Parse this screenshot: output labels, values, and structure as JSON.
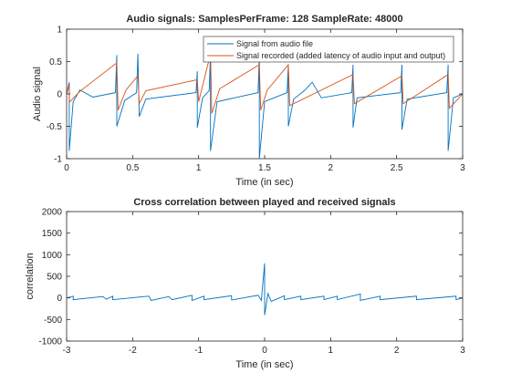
{
  "figure": {
    "background": "#ffffff"
  },
  "chart_data": [
    {
      "type": "line",
      "title": "Audio signals: SamplesPerFrame: 128 SampleRate: 48000",
      "xlabel": "Time (in sec)",
      "ylabel": "Audio signal",
      "xlim": [
        0,
        3
      ],
      "ylim": [
        -1,
        1
      ],
      "xticks": [
        0,
        0.5,
        1,
        1.5,
        2,
        2.5,
        3
      ],
      "xtick_labels": [
        "0",
        "0.5",
        "1",
        "1.5",
        "2",
        "2.5",
        "3"
      ],
      "yticks": [
        -1,
        -0.5,
        0,
        0.5,
        1
      ],
      "ytick_labels": [
        "-1",
        "-0.5",
        "0",
        "0.5",
        "1"
      ],
      "grid": false,
      "legend_position": "top-right",
      "series": [
        {
          "name": "Signal from audio file",
          "color": "#0072BD",
          "points": [
            [
              0,
              0.0
            ],
            [
              0.02,
              0.18
            ],
            [
              0.02,
              -0.88
            ],
            [
              0.05,
              -0.12
            ],
            [
              0.1,
              0.06
            ],
            [
              0.2,
              -0.05
            ],
            [
              0.37,
              0.02
            ],
            [
              0.38,
              0.6
            ],
            [
              0.38,
              -0.5
            ],
            [
              0.44,
              -0.1
            ],
            [
              0.53,
              0.02
            ],
            [
              0.54,
              0.62
            ],
            [
              0.55,
              -0.35
            ],
            [
              0.6,
              -0.08
            ],
            [
              0.98,
              0.02
            ],
            [
              0.99,
              0.35
            ],
            [
              0.99,
              -0.52
            ],
            [
              1.03,
              -0.06
            ],
            [
              1.08,
              0.05
            ],
            [
              1.09,
              0.62
            ],
            [
              1.09,
              -0.88
            ],
            [
              1.14,
              -0.12
            ],
            [
              1.45,
              0.02
            ],
            [
              1.46,
              0.6
            ],
            [
              1.46,
              -1.0
            ],
            [
              1.5,
              -0.12
            ],
            [
              1.67,
              0.02
            ],
            [
              1.68,
              0.45
            ],
            [
              1.68,
              -0.5
            ],
            [
              1.72,
              -0.08
            ],
            [
              1.8,
              0.05
            ],
            [
              1.86,
              0.18
            ],
            [
              1.93,
              -0.06
            ],
            [
              2.16,
              0.02
            ],
            [
              2.17,
              0.45
            ],
            [
              2.17,
              -0.52
            ],
            [
              2.2,
              -0.06
            ],
            [
              2.53,
              0.02
            ],
            [
              2.54,
              0.45
            ],
            [
              2.54,
              -0.55
            ],
            [
              2.58,
              -0.08
            ],
            [
              2.88,
              0.02
            ],
            [
              2.89,
              0.45
            ],
            [
              2.89,
              -0.88
            ],
            [
              2.93,
              -0.06
            ],
            [
              3.0,
              0.0
            ]
          ]
        },
        {
          "name": "Signal recorded (added latency of audio input and output)",
          "color": "#D95319",
          "points": [
            [
              0,
              0.0
            ],
            [
              0.02,
              0.14
            ],
            [
              0.02,
              -0.13
            ],
            [
              0.1,
              0.04
            ],
            [
              0.38,
              0.48
            ],
            [
              0.39,
              -0.25
            ],
            [
              0.45,
              0.06
            ],
            [
              0.54,
              0.28
            ],
            [
              0.55,
              -0.15
            ],
            [
              0.6,
              0.05
            ],
            [
              0.99,
              0.22
            ],
            [
              1.0,
              -0.12
            ],
            [
              1.09,
              0.62
            ],
            [
              1.1,
              -0.3
            ],
            [
              1.16,
              0.08
            ],
            [
              1.46,
              0.45
            ],
            [
              1.47,
              -0.25
            ],
            [
              1.52,
              0.06
            ],
            [
              1.68,
              0.45
            ],
            [
              1.69,
              -0.18
            ],
            [
              2.17,
              0.3
            ],
            [
              2.18,
              -0.15
            ],
            [
              2.54,
              0.28
            ],
            [
              2.55,
              -0.15
            ],
            [
              2.89,
              0.3
            ],
            [
              2.9,
              -0.22
            ],
            [
              3.0,
              0.0
            ]
          ]
        }
      ]
    },
    {
      "type": "line",
      "title": "Cross correlation between played and received signals",
      "xlabel": "Time (in sec)",
      "ylabel": "correlation",
      "xlim": [
        -3,
        3
      ],
      "ylim": [
        -1000,
        2000
      ],
      "xticks": [
        -3,
        -2,
        -1,
        0,
        1,
        2,
        3
      ],
      "xtick_labels": [
        "-3",
        "-2",
        "-1",
        "0",
        "1",
        "2",
        "3"
      ],
      "yticks": [
        -1000,
        -500,
        0,
        500,
        1000,
        1500,
        2000
      ],
      "ytick_labels": [
        "-1000",
        "-500",
        "0",
        "500",
        "1000",
        "1500",
        "2000"
      ],
      "grid": false,
      "series": [
        {
          "color": "#0072BD",
          "points": [
            [
              -3,
              0
            ],
            [
              -2.9,
              40
            ],
            [
              -2.9,
              -40
            ],
            [
              -2.45,
              30
            ],
            [
              -2.4,
              -30
            ],
            [
              -2.3,
              40
            ],
            [
              -2.3,
              -40
            ],
            [
              -1.82,
              30
            ],
            [
              -1.75,
              40
            ],
            [
              -1.72,
              -60
            ],
            [
              -1.45,
              30
            ],
            [
              -1.4,
              -40
            ],
            [
              -1.1,
              60
            ],
            [
              -1.1,
              -60
            ],
            [
              -0.92,
              40
            ],
            [
              -0.92,
              -40
            ],
            [
              -0.5,
              50
            ],
            [
              -0.5,
              -50
            ],
            [
              -0.1,
              60
            ],
            [
              -0.05,
              -60
            ],
            [
              0,
              800
            ],
            [
              0,
              -400
            ],
            [
              0.05,
              100
            ],
            [
              0.1,
              -80
            ],
            [
              0.3,
              50
            ],
            [
              0.3,
              -40
            ],
            [
              0.55,
              40
            ],
            [
              0.55,
              -40
            ],
            [
              0.9,
              40
            ],
            [
              0.9,
              -40
            ],
            [
              1.1,
              40
            ],
            [
              1.1,
              -40
            ],
            [
              1.45,
              90
            ],
            [
              1.45,
              -60
            ],
            [
              1.75,
              40
            ],
            [
              1.75,
              -40
            ],
            [
              2.3,
              40
            ],
            [
              2.3,
              -40
            ],
            [
              2.9,
              40
            ],
            [
              2.9,
              -40
            ],
            [
              3,
              0
            ]
          ]
        }
      ]
    }
  ]
}
